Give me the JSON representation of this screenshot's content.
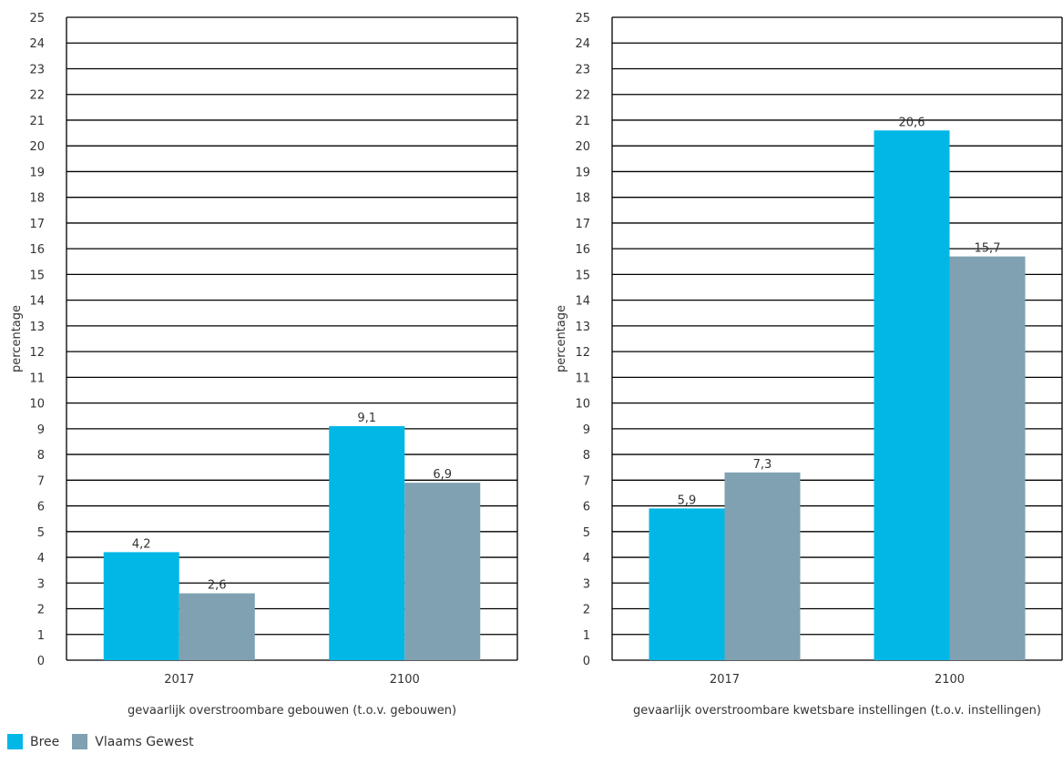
{
  "colors": {
    "bree": "#00b7e6",
    "vlaams_gewest": "#7fa1b1",
    "grid": "#000000",
    "text": "#333333"
  },
  "legend": [
    {
      "label": "Bree",
      "color": "#00b7e6"
    },
    {
      "label": "Vlaams Gewest",
      "color": "#7fa1b1"
    }
  ],
  "chart_data": [
    {
      "type": "bar",
      "xlabel": "gevaarlijk overstroombare gebouwen (t.o.v. gebouwen)",
      "ylabel": "percentage",
      "ylim": [
        0,
        25
      ],
      "ytick_step": 1,
      "grid": true,
      "categories": [
        "2017",
        "2100"
      ],
      "series": [
        {
          "name": "Bree",
          "values": [
            4.2,
            9.1
          ],
          "labels": [
            "4,2",
            "9,1"
          ]
        },
        {
          "name": "Vlaams Gewest",
          "values": [
            2.6,
            6.9
          ],
          "labels": [
            "2,6",
            "6,9"
          ]
        }
      ]
    },
    {
      "type": "bar",
      "xlabel": "gevaarlijk overstroombare kwetsbare instellingen (t.o.v. instellingen)",
      "ylabel": "percentage",
      "ylim": [
        0,
        25
      ],
      "ytick_step": 1,
      "grid": true,
      "categories": [
        "2017",
        "2100"
      ],
      "series": [
        {
          "name": "Bree",
          "values": [
            5.9,
            20.6
          ],
          "labels": [
            "5,9",
            "20,6"
          ]
        },
        {
          "name": "Vlaams Gewest",
          "values": [
            7.3,
            15.7
          ],
          "labels": [
            "7,3",
            "15,7"
          ]
        }
      ]
    }
  ]
}
